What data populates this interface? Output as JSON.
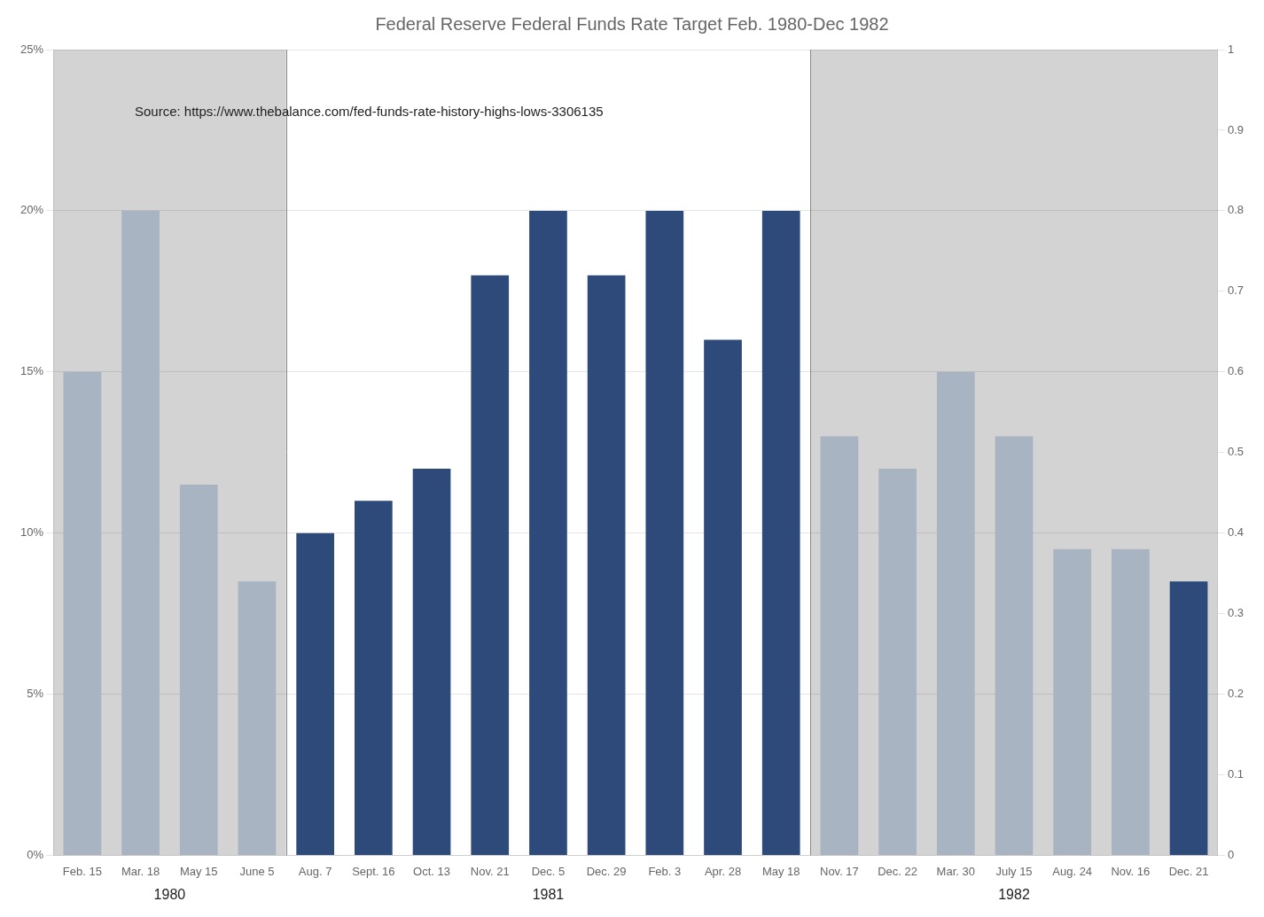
{
  "chart_data": {
    "type": "bar",
    "title": "Federal Reserve Federal Funds Rate Target Feb. 1980-Dec 1982",
    "annotations": [
      "Source: https://www.thebalance.com/fed-funds-rate-history-highs-lows-3306135"
    ],
    "categories": [
      "Feb. 15",
      "Mar. 18",
      "May 15",
      "June 5",
      "Aug. 7",
      "Sept. 16",
      "Oct. 13",
      "Nov. 21",
      "Dec. 5",
      "Dec. 29",
      "Feb. 3",
      "Apr. 28",
      "May 18",
      "Nov. 17",
      "Dec. 22",
      "Mar. 30",
      "July 15",
      "Aug. 24",
      "Nov. 16",
      "Dec. 21"
    ],
    "values": [
      15,
      20,
      11.5,
      8.5,
      10,
      11,
      12,
      18,
      20,
      18,
      20,
      16,
      20,
      13,
      12,
      15,
      13,
      9.5,
      9.5,
      8.5
    ],
    "colors": [
      "#A9B4C2",
      "#A9B4C2",
      "#A9B4C2",
      "#A9B4C2",
      "#2E4A7B",
      "#2E4A7B",
      "#2E4A7B",
      "#2E4A7B",
      "#2E4A7B",
      "#2E4A7B",
      "#2E4A7B",
      "#2E4A7B",
      "#2E4A7B",
      "#A9B4C2",
      "#A9B4C2",
      "#A9B4C2",
      "#A9B4C2",
      "#A9B4C2",
      "#A9B4C2",
      "#2E4A7B"
    ],
    "groups": [
      {
        "name": "1980",
        "first": "Feb. 15",
        "last": "June 5",
        "color": "#D3D3D3"
      },
      {
        "name": "1981",
        "first": "Aug. 7",
        "last": "May 18",
        "color": "#FFFFFF"
      },
      {
        "name": "1982",
        "first": "Nov. 17",
        "last": "Dec. 21",
        "color": "#D3D3D3"
      }
    ],
    "ylim": [
      0,
      25
    ],
    "yticks": [
      {
        "value": 0,
        "label": "0%"
      },
      {
        "value": 5,
        "label": "5%"
      },
      {
        "value": 10,
        "label": "10%"
      },
      {
        "value": 15,
        "label": "15%"
      },
      {
        "value": 20,
        "label": "20%"
      },
      {
        "value": 25,
        "label": "25%"
      }
    ],
    "y2lim": [
      0,
      1
    ],
    "y2ticks": [
      0,
      0.1,
      0.2,
      0.3,
      0.4,
      0.5,
      0.6,
      0.7,
      0.8,
      0.9,
      1
    ],
    "grid": true
  }
}
